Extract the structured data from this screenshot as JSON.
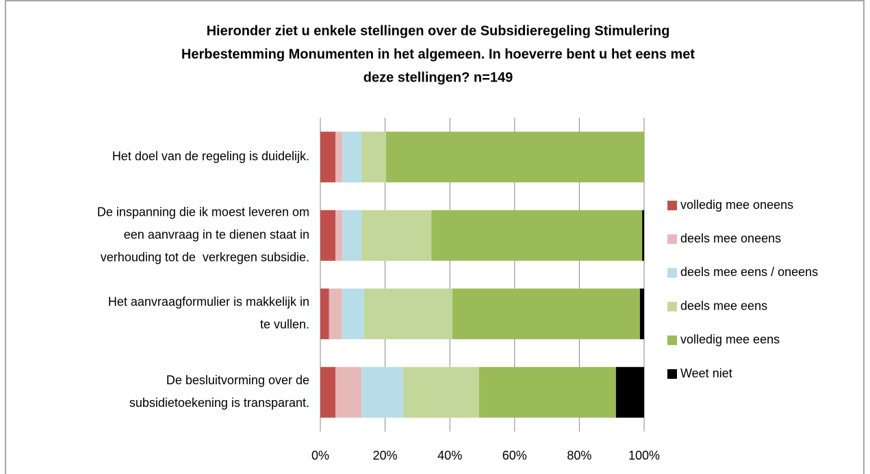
{
  "chart_data": {
    "type": "stacked-barh",
    "title": [
      "Hieronder ziet u enkele stellingen over de Subsidieregeling Stimulering",
      "Herbestemming Monumenten in het algemeen. In hoeverre bent u het eens met",
      "deze stellingen? n=149"
    ],
    "categories": [
      [
        "Het doel van de regeling is duidelijk."
      ],
      [
        "De inspanning die ik moest leveren om",
        "een aanvraag in te dienen staat in",
        "verhouding tot de  verkregen subsidie."
      ],
      [
        "Het aanvraagformulier is makkelijk in",
        "te vullen."
      ],
      [
        "De besluitvorming over de",
        "subsidietoekening is transparant."
      ]
    ],
    "series": [
      {
        "name": "volledig mee oneens",
        "color": "#c0504d",
        "values": [
          4.7,
          4.7,
          2.7,
          4.7
        ]
      },
      {
        "name": "deels mee oneens",
        "color": "#e6b9b8",
        "values": [
          2.1,
          2.1,
          4.0,
          8.0
        ]
      },
      {
        "name": "deels mee eens / oneens",
        "color": "#b7dee8",
        "values": [
          5.9,
          5.9,
          6.8,
          12.9
        ]
      },
      {
        "name": "deels mee eens",
        "color": "#c4d79b",
        "values": [
          7.6,
          21.6,
          27.3,
          23.4
        ]
      },
      {
        "name": "volledig mee eens",
        "color": "#9bbb59",
        "values": [
          79.7,
          65.1,
          57.9,
          42.3
        ]
      },
      {
        "name": "Weet niet",
        "color": "#000000",
        "values": [
          0,
          0.6,
          1.3,
          8.7
        ]
      }
    ],
    "xlim": [
      0,
      100
    ],
    "xticks": [
      {
        "value": 0,
        "label": "0%"
      },
      {
        "value": 20,
        "label": "20%"
      },
      {
        "value": 40,
        "label": "40%"
      },
      {
        "value": 60,
        "label": "60%"
      },
      {
        "value": 80,
        "label": "80%"
      },
      {
        "value": 100,
        "label": "100%"
      }
    ],
    "grid": true,
    "legend": "right"
  }
}
